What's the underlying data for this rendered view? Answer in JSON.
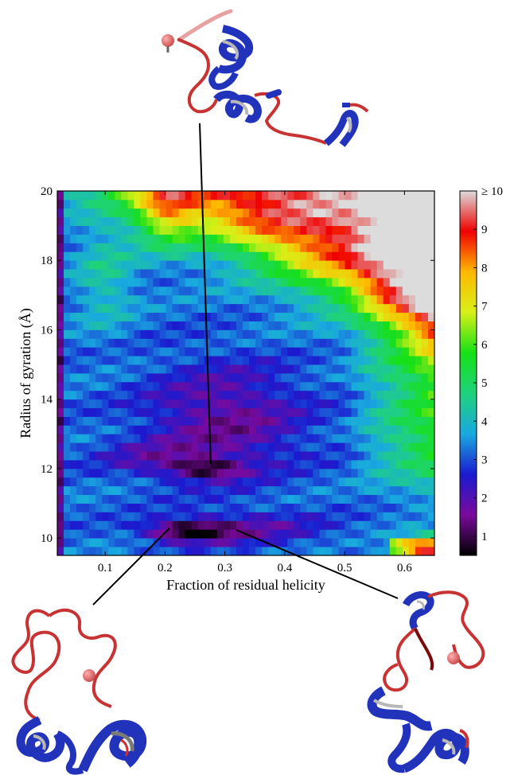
{
  "chart_data": {
    "type": "heatmap",
    "xlabel": "Fraction of residual helicity",
    "ylabel": "Radius of gyration (Å)",
    "xlim": [
      0.02,
      0.65
    ],
    "ylim": [
      9.5,
      20
    ],
    "xticks": [
      0.1,
      0.2,
      0.3,
      0.4,
      0.5,
      0.6
    ],
    "xtick_labels": [
      "0.1",
      "0.2",
      "0.3",
      "0.4",
      "0.5",
      "0.6"
    ],
    "yticks": [
      10,
      12,
      14,
      16,
      18,
      20
    ],
    "ytick_labels": [
      "10",
      "12",
      "14",
      "16",
      "18",
      "20"
    ],
    "colorbar": {
      "min": 0.5,
      "max": 10,
      "ticks": [
        1,
        2,
        3,
        4,
        5,
        6,
        7,
        8,
        9,
        10
      ],
      "tick_labels": [
        "1",
        "2",
        "3",
        "4",
        "5",
        "6",
        "7",
        "8",
        "9",
        "≥ 10"
      ],
      "colors": [
        "#000000",
        "#7a0a9c",
        "#1a1ad0",
        "#19a9e0",
        "#1fd27c",
        "#16e016",
        "#d8f018",
        "#ffb800",
        "#f00000",
        "#dcdcdc"
      ]
    },
    "features": [
      {
        "kind": "minimum",
        "x": 0.23,
        "y": 10.25,
        "value": 0.5
      },
      {
        "kind": "minimum",
        "x": 0.27,
        "y": 12.0,
        "value": 1.3
      },
      {
        "kind": "basin",
        "x": 0.3,
        "y": 13.5,
        "value": 2.0
      },
      {
        "kind": "high-region",
        "x": 0.55,
        "y": 18.5,
        "value": 10
      }
    ],
    "structure_pointers": [
      {
        "structure": "top",
        "x": 0.27,
        "y": 12.0
      },
      {
        "structure": "bottom-left",
        "x": 0.22,
        "y": 10.1
      },
      {
        "structure": "bottom-right",
        "x": 0.3,
        "y": 10.2
      }
    ]
  },
  "colors": {
    "helix": "#2233bb",
    "helix_inner": "#b8b8b8",
    "coil": "#c83232",
    "terminus_sphere": "#e06a6a"
  }
}
